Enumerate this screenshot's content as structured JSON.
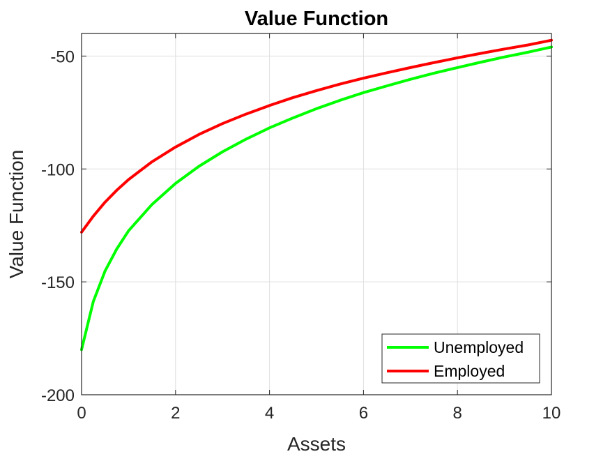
{
  "chart_data": {
    "type": "line",
    "title": "Value Function",
    "xlabel": "Assets",
    "ylabel": "Value Function",
    "xlim": [
      0,
      10
    ],
    "ylim": [
      -200,
      -40
    ],
    "x_ticks": [
      0,
      2,
      4,
      6,
      8,
      10
    ],
    "x_tick_labels": [
      "0",
      "2",
      "4",
      "6",
      "8",
      "10"
    ],
    "y_ticks": [
      -200,
      -150,
      -100,
      -50
    ],
    "y_tick_labels": [
      "-200",
      "-150",
      "-100",
      "-50"
    ],
    "grid": true,
    "legend_position": "bottom-right",
    "x": [
      0,
      0.25,
      0.5,
      0.75,
      1,
      1.5,
      2,
      2.5,
      3,
      3.5,
      4,
      4.5,
      5,
      5.5,
      6,
      6.5,
      7,
      7.5,
      8,
      8.5,
      9,
      9.5,
      10
    ],
    "series": [
      {
        "name": "Unemployed",
        "color": "#00ff00",
        "values": [
          -180,
          -158.7,
          -145.2,
          -135.4,
          -127.4,
          -115.7,
          -106.4,
          -98.8,
          -92.4,
          -86.8,
          -81.8,
          -77.4,
          -73.3,
          -69.6,
          -66.2,
          -63.2,
          -60.3,
          -57.6,
          -55.1,
          -52.7,
          -50.4,
          -48.3,
          -46.0
        ]
      },
      {
        "name": "Employed",
        "color": "#ff0000",
        "values": [
          -128,
          -120.9,
          -114.7,
          -109.4,
          -104.7,
          -96.8,
          -90.3,
          -84.7,
          -79.9,
          -75.7,
          -71.9,
          -68.4,
          -65.3,
          -62.4,
          -59.8,
          -57.4,
          -55.1,
          -52.9,
          -50.8,
          -48.8,
          -46.9,
          -45.1,
          -43.0
        ]
      }
    ]
  }
}
